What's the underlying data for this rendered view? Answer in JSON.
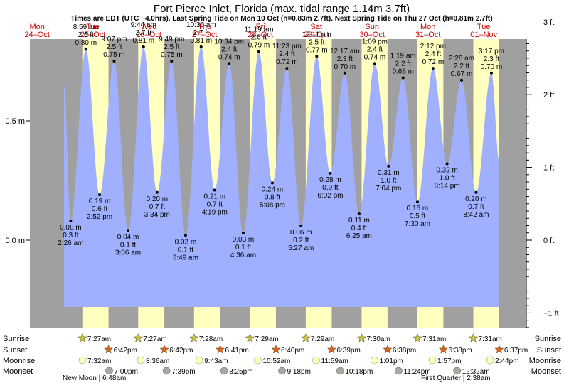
{
  "title": "Fort Pierce Inlet, Florida (max. tidal range 1.14m 3.7ft)",
  "subtitle": "Times are EDT (UTC −4.0hrs). Last Spring Tide on Mon 10 Oct (h=0.83m 2.7ft). Next Spring Tide on Thu 27 Oct (h=0.81m 2.7ft)",
  "colors": {
    "night": "#a0a0a0",
    "day": "#ffffc0",
    "water": "#a0b0ff",
    "date_text": "#cc0000",
    "sun_star": "#c8c840",
    "sunset_star": "#e06020",
    "moonrise": "#ffffc0",
    "moonset": "#a8a8a0"
  },
  "chart_data": {
    "type": "area",
    "x_unit": "datetime (EDT)",
    "left_axis": {
      "unit": "m",
      "ticks": [
        {
          "value": 0.5,
          "label": "0.5 m"
        },
        {
          "value": 0.0,
          "label": "0.0 m"
        }
      ]
    },
    "right_axis": {
      "unit": "ft",
      "ticks": [
        {
          "value": 3,
          "label": "3 ft"
        },
        {
          "value": 2,
          "label": "2 ft"
        },
        {
          "value": 1,
          "label": "1 ft"
        },
        {
          "value": 0,
          "label": "0 ft"
        },
        {
          "value": -1,
          "label": "−1 ft"
        }
      ]
    },
    "days": [
      {
        "dow": "Mon",
        "date": "24–Oct"
      },
      {
        "dow": "Tue",
        "date": "25–Oct"
      },
      {
        "dow": "Wed",
        "date": "26–Oct"
      },
      {
        "dow": "Thu",
        "date": "27–Oct"
      },
      {
        "dow": "Fri",
        "date": "28–Oct"
      },
      {
        "dow": "Sat",
        "date": "29–Oct"
      },
      {
        "dow": "Sun",
        "date": "30–Oct"
      },
      {
        "dow": "Mon",
        "date": "31–Oct"
      },
      {
        "dow": "Tue",
        "date": "01–Nov"
      }
    ],
    "tides": [
      {
        "type": "low",
        "day": 1,
        "time": "2:26 am",
        "m": 0.08,
        "ft": "0.3 ft",
        "m_label": "0.08 m"
      },
      {
        "type": "high",
        "day": 1,
        "time": "8:59 am",
        "m": 0.8,
        "ft": "2.6 ft",
        "m_label": "0.80 m"
      },
      {
        "type": "low",
        "day": 1,
        "time": "2:52 pm",
        "m": 0.19,
        "ft": "0.6 ft",
        "m_label": "0.19 m"
      },
      {
        "type": "high",
        "day": 1,
        "time": "9:07 pm",
        "m": 0.75,
        "ft": "2.5 ft",
        "m_label": "0.75 m"
      },
      {
        "type": "low",
        "day": 2,
        "time": "3:06 am",
        "m": 0.04,
        "ft": "0.1 ft",
        "m_label": "0.04 m"
      },
      {
        "type": "high",
        "day": 2,
        "time": "9:44 am",
        "m": 0.81,
        "ft": "2.7 ft",
        "m_label": "0.81 m"
      },
      {
        "type": "low",
        "day": 2,
        "time": "3:34 pm",
        "m": 0.2,
        "ft": "0.7 ft",
        "m_label": "0.20 m"
      },
      {
        "type": "high",
        "day": 2,
        "time": "9:49 pm",
        "m": 0.75,
        "ft": "2.5 ft",
        "m_label": "0.75 m"
      },
      {
        "type": "low",
        "day": 3,
        "time": "3:49 am",
        "m": 0.02,
        "ft": "0.1 ft",
        "m_label": "0.02 m"
      },
      {
        "type": "high",
        "day": 3,
        "time": "10:30 am",
        "m": 0.81,
        "ft": "2.7 ft",
        "m_label": "0.81 m"
      },
      {
        "type": "low",
        "day": 3,
        "time": "4:19 pm",
        "m": 0.21,
        "ft": "0.7 ft",
        "m_label": "0.21 m"
      },
      {
        "type": "high",
        "day": 3,
        "time": "10:34 pm",
        "m": 0.74,
        "ft": "2.4 ft",
        "m_label": "0.74 m"
      },
      {
        "type": "low",
        "day": 4,
        "time": "4:36 am",
        "m": 0.03,
        "ft": "0.1 ft",
        "m_label": "0.03 m"
      },
      {
        "type": "high",
        "day": 4,
        "time": "11:19 am",
        "m": 0.79,
        "ft": "2.6 ft",
        "m_label": "0.79 m"
      },
      {
        "type": "low",
        "day": 4,
        "time": "5:08 pm",
        "m": 0.24,
        "ft": "0.8 ft",
        "m_label": "0.24 m"
      },
      {
        "type": "high",
        "day": 4,
        "time": "11:23 pm",
        "m": 0.72,
        "ft": "2.4 ft",
        "m_label": "0.72 m"
      },
      {
        "type": "low",
        "day": 5,
        "time": "5:27 am",
        "m": 0.06,
        "ft": "0.2 ft",
        "m_label": "0.06 m"
      },
      {
        "type": "high",
        "day": 5,
        "time": "12:11 pm",
        "m": 0.77,
        "ft": "2.5 ft",
        "m_label": "0.77 m"
      },
      {
        "type": "low",
        "day": 5,
        "time": "6:02 pm",
        "m": 0.28,
        "ft": "0.9 ft",
        "m_label": "0.28 m"
      },
      {
        "type": "high",
        "day": 6,
        "time": "12:17 am",
        "m": 0.7,
        "ft": "2.3 ft",
        "m_label": "0.70 m"
      },
      {
        "type": "low",
        "day": 6,
        "time": "6:25 am",
        "m": 0.11,
        "ft": "0.4 ft",
        "m_label": "0.11 m"
      },
      {
        "type": "high",
        "day": 6,
        "time": "1:09 pm",
        "m": 0.74,
        "ft": "2.4 ft",
        "m_label": "0.74 m"
      },
      {
        "type": "low",
        "day": 6,
        "time": "7:04 pm",
        "m": 0.31,
        "ft": "1.0 ft",
        "m_label": "0.31 m"
      },
      {
        "type": "high",
        "day": 7,
        "time": "1:19 am",
        "m": 0.68,
        "ft": "2.2 ft",
        "m_label": "0.68 m"
      },
      {
        "type": "low",
        "day": 7,
        "time": "7:30 am",
        "m": 0.16,
        "ft": "0.5 ft",
        "m_label": "0.16 m"
      },
      {
        "type": "high",
        "day": 7,
        "time": "2:12 pm",
        "m": 0.72,
        "ft": "2.4 ft",
        "m_label": "0.72 m"
      },
      {
        "type": "low",
        "day": 7,
        "time": "8:14 pm",
        "m": 0.32,
        "ft": "1.0 ft",
        "m_label": "0.32 m"
      },
      {
        "type": "high",
        "day": 8,
        "time": "2:28 am",
        "m": 0.67,
        "ft": "2.2 ft",
        "m_label": "0.67 m"
      },
      {
        "type": "low",
        "day": 8,
        "time": "8:42 am",
        "m": 0.2,
        "ft": "0.7 ft",
        "m_label": "0.20 m"
      },
      {
        "type": "high",
        "day": 8,
        "time": "3:17 pm",
        "m": 0.7,
        "ft": "2.3 ft",
        "m_label": "0.70 m"
      }
    ],
    "astro": {
      "row_labels": [
        "Sunrise",
        "Sunset",
        "Moonrise",
        "Moonset"
      ],
      "sunrise": [
        {
          "day": 1,
          "time": "7:27am"
        },
        {
          "day": 2,
          "time": "7:27am"
        },
        {
          "day": 3,
          "time": "7:28am"
        },
        {
          "day": 4,
          "time": "7:29am"
        },
        {
          "day": 5,
          "time": "7:29am"
        },
        {
          "day": 6,
          "time": "7:30am"
        },
        {
          "day": 7,
          "time": "7:31am"
        },
        {
          "day": 8,
          "time": "7:31am"
        }
      ],
      "sunset": [
        {
          "day": 1,
          "time": "6:42pm"
        },
        {
          "day": 2,
          "time": "6:42pm"
        },
        {
          "day": 3,
          "time": "6:41pm"
        },
        {
          "day": 4,
          "time": "6:40pm"
        },
        {
          "day": 5,
          "time": "6:39pm"
        },
        {
          "day": 6,
          "time": "6:38pm"
        },
        {
          "day": 7,
          "time": "6:38pm"
        },
        {
          "day": 8,
          "time": "6:37pm"
        }
      ],
      "moonrise": [
        {
          "day": 1,
          "time": "7:32am"
        },
        {
          "day": 2,
          "time": "8:36am"
        },
        {
          "day": 3,
          "time": "9:43am"
        },
        {
          "day": 4,
          "time": "10:52am"
        },
        {
          "day": 5,
          "time": "11:59am"
        },
        {
          "day": 6,
          "time": "1:01pm"
        },
        {
          "day": 7,
          "time": "1:57pm"
        },
        {
          "day": 8,
          "time": "2:44pm"
        }
      ],
      "moonset": [
        {
          "day": 1,
          "time": "7:00pm"
        },
        {
          "day": 2,
          "time": "7:39pm"
        },
        {
          "day": 3,
          "time": "8:25pm"
        },
        {
          "day": 4,
          "time": "9:18pm"
        },
        {
          "day": 5,
          "time": "10:18pm"
        },
        {
          "day": 6,
          "time": "11:24pm"
        },
        {
          "day": 8,
          "time": "12:32am"
        }
      ],
      "moon_phases": [
        {
          "label": "New Moon | 6:48am"
        },
        {
          "label": "First Quarter | 2:38am"
        }
      ]
    }
  }
}
